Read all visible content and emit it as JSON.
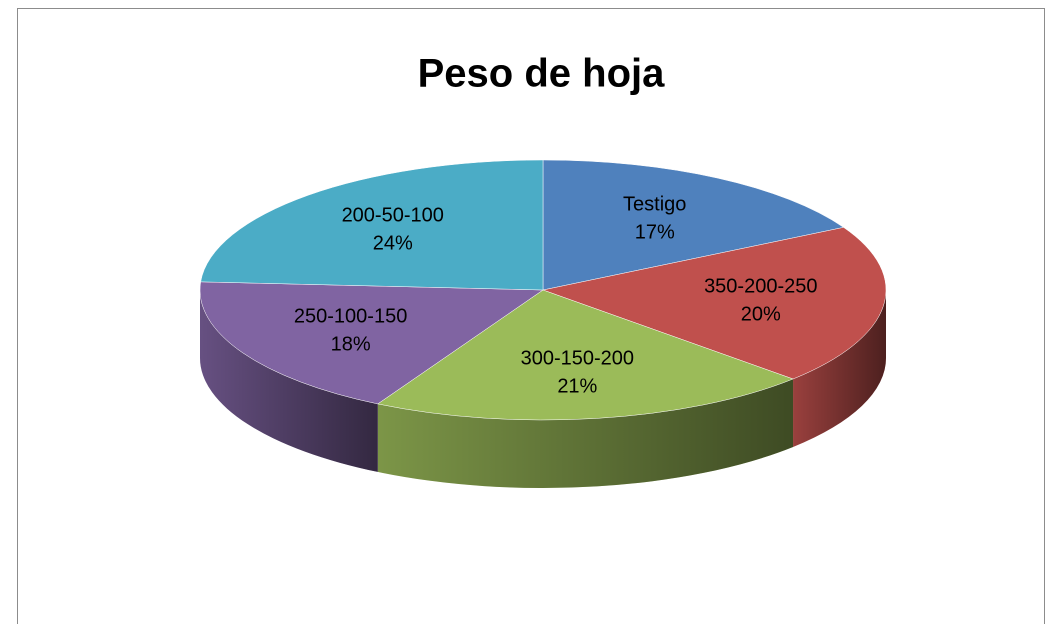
{
  "chart_data": {
    "type": "pie",
    "title": "Peso de hoja",
    "categories": [
      "Testigo",
      "350-200-250",
      "300-150-200",
      "250-100-150",
      "200-50-100"
    ],
    "values": [
      17,
      20,
      21,
      18,
      24
    ],
    "value_labels": [
      "17%",
      "20%",
      "21%",
      "18%",
      "24%"
    ],
    "colors": [
      "#4f81bd",
      "#c0504d",
      "#9bbb59",
      "#8064a2",
      "#4bacc6"
    ]
  }
}
